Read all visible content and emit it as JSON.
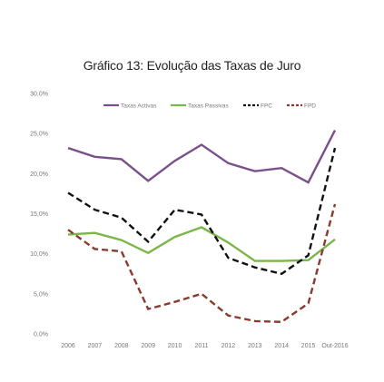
{
  "chart_data": {
    "type": "line",
    "title": "Gráfico 13: Evolução das Taxas de Juro",
    "categories": [
      "2006",
      "2007",
      "2008",
      "2009",
      "2010",
      "2011",
      "2012",
      "2013",
      "2014",
      "2015",
      "Out-2016"
    ],
    "ylim": [
      0,
      30
    ],
    "y_ticks": [
      "0,0%",
      "5,0%",
      "10,0%",
      "15,0%",
      "20,0%",
      "25,0%",
      "30,0%"
    ],
    "y_tick_values": [
      0,
      5,
      10,
      15,
      20,
      25,
      30
    ],
    "grid": false,
    "legend_position": "top-right",
    "series": [
      {
        "name": "Taxas Activas",
        "color": "#7b4f8a",
        "dash": "solid",
        "values": [
          23.2,
          22.1,
          21.8,
          19.1,
          21.6,
          23.6,
          21.3,
          20.3,
          20.7,
          18.9,
          25.4
        ]
      },
      {
        "name": "Taxas Passivas",
        "color": "#7ab648",
        "dash": "solid",
        "values": [
          12.4,
          12.6,
          11.7,
          10.1,
          12.1,
          13.3,
          11.4,
          9.1,
          9.1,
          9.2,
          11.8
        ]
      },
      {
        "name": "FPC",
        "color": "#111111",
        "dash": "dashed",
        "values": [
          17.6,
          15.5,
          14.5,
          11.5,
          15.5,
          14.9,
          9.5,
          8.3,
          7.5,
          9.8,
          23.2
        ]
      },
      {
        "name": "FPD",
        "color": "#8b3a2e",
        "dash": "dashed",
        "values": [
          13.0,
          10.6,
          10.3,
          3.1,
          4.0,
          5.0,
          2.3,
          1.6,
          1.5,
          3.8,
          16.2
        ]
      }
    ]
  }
}
